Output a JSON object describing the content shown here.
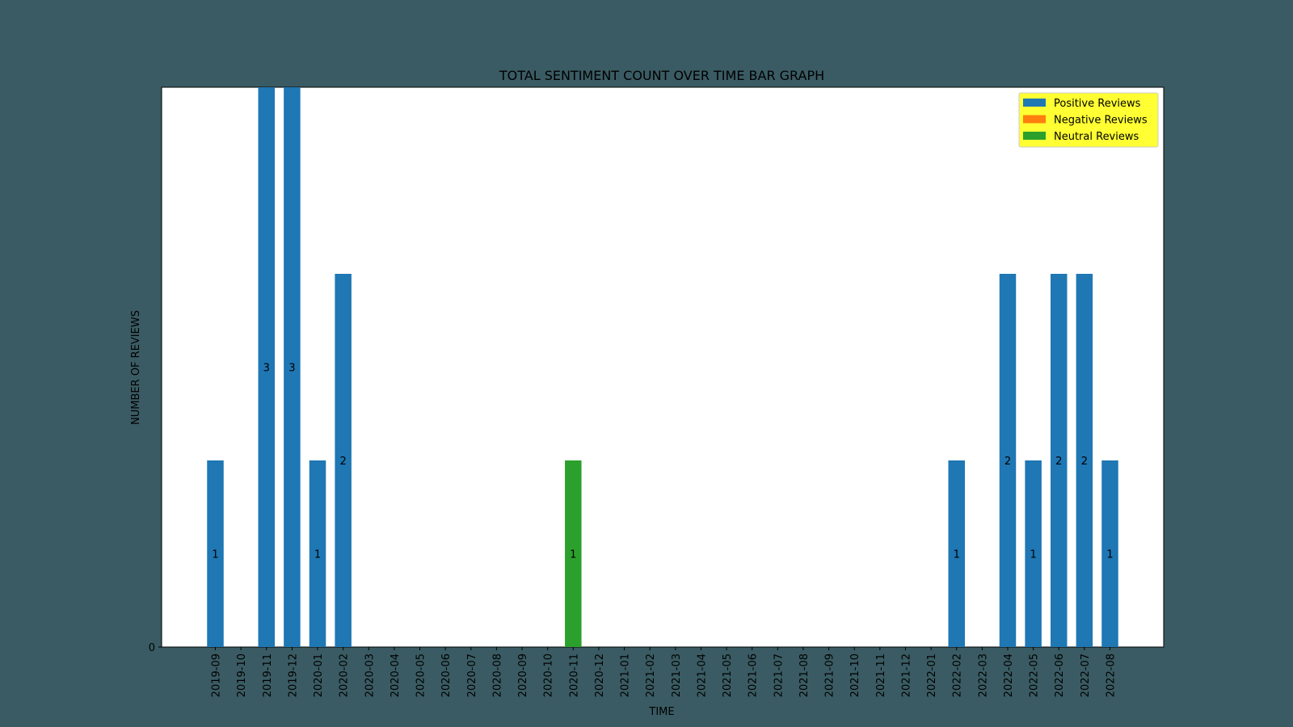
{
  "chart_data": {
    "type": "bar",
    "title": "TOTAL SENTIMENT COUNT OVER TIME BAR GRAPH",
    "xlabel": "TIME",
    "ylabel": "NUMBER OF REVIEWS",
    "ylim": [
      0,
      3
    ],
    "yticks": [
      "0"
    ],
    "grid": false,
    "stacked": true,
    "legend_position": "top-right",
    "colors": {
      "plot_background": "#ffffff",
      "page_background": "#3a5b63",
      "legend_background": "#ffff33"
    },
    "categories": [
      "2019-09",
      "2019-10",
      "2019-11",
      "2019-12",
      "2020-01",
      "2020-02",
      "2020-03",
      "2020-04",
      "2020-05",
      "2020-06",
      "2020-07",
      "2020-08",
      "2020-09",
      "2020-10",
      "2020-11",
      "2020-12",
      "2021-01",
      "2021-02",
      "2021-03",
      "2021-04",
      "2021-05",
      "2021-06",
      "2021-07",
      "2021-08",
      "2021-09",
      "2021-10",
      "2021-11",
      "2021-12",
      "2022-01",
      "2022-02",
      "2022-03",
      "2022-04",
      "2022-05",
      "2022-06",
      "2022-07",
      "2022-08"
    ],
    "series": [
      {
        "name": "Positive Reviews",
        "color": "#1f77b4",
        "values": [
          1,
          0,
          3,
          3,
          1,
          2,
          0,
          0,
          0,
          0,
          0,
          0,
          0,
          0,
          0,
          0,
          0,
          0,
          0,
          0,
          0,
          0,
          0,
          0,
          0,
          0,
          0,
          0,
          0,
          1,
          0,
          2,
          1,
          2,
          2,
          1
        ]
      },
      {
        "name": "Negative Reviews",
        "color": "#ff7f0e",
        "values": [
          0,
          0,
          0,
          0,
          0,
          0,
          0,
          0,
          0,
          0,
          0,
          0,
          0,
          0,
          0,
          0,
          0,
          0,
          0,
          0,
          0,
          0,
          0,
          0,
          0,
          0,
          0,
          0,
          0,
          0,
          0,
          0,
          0,
          0,
          0,
          0
        ]
      },
      {
        "name": "Neutral Reviews",
        "color": "#2ca02c",
        "values": [
          0,
          0,
          0,
          0,
          0,
          0,
          0,
          0,
          0,
          0,
          0,
          0,
          0,
          0,
          1,
          0,
          0,
          0,
          0,
          0,
          0,
          0,
          0,
          0,
          0,
          0,
          0,
          0,
          0,
          0,
          0,
          0,
          0,
          0,
          0,
          0
        ]
      }
    ]
  }
}
